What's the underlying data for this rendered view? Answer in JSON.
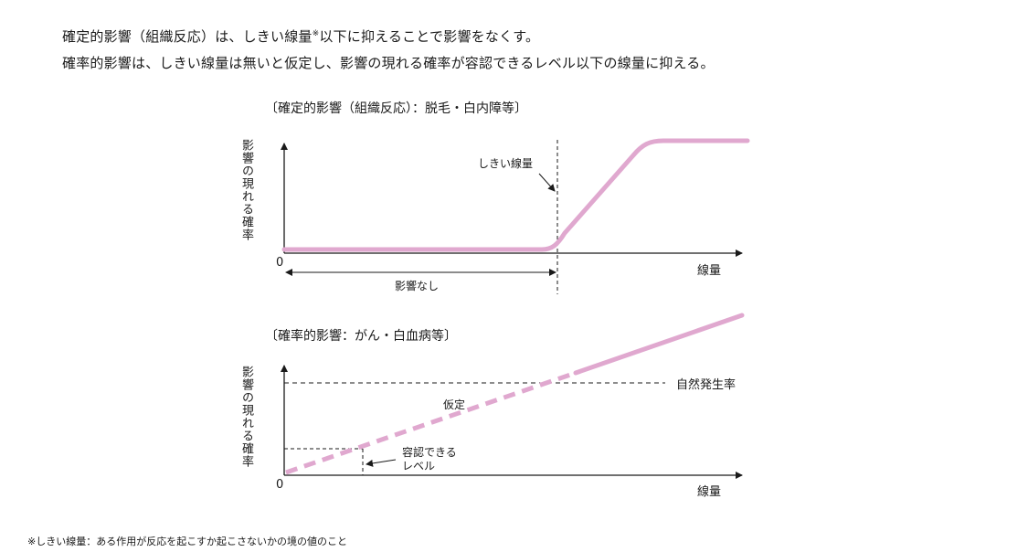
{
  "intro": {
    "line1": "確定的影響（組織反応）は、しきい線量",
    "line1_mark": "※",
    "line1_rest": "以下に抑えることで影響をなくす。",
    "line2": "確率的影響は、しきい線量は無いと仮定し、影響の現れる確率が容認できるレベル以下の線量に抑える。"
  },
  "deterministic": {
    "title": "〔確定的影響（組織反応）：脱毛・白内障等〕",
    "y_label": "影響の現れる確率",
    "x_label": "線量",
    "origin": "0",
    "threshold_label": "しきい線量",
    "no_effect_label": "影響なし",
    "curve_color": "#e0a8cf"
  },
  "stochastic": {
    "title": "〔確率的影響：がん・白血病等〕",
    "y_label": "影響の現れる確率",
    "x_label": "線量",
    "origin": "0",
    "natural_rate_label": "自然発生率",
    "assumed_label": "仮定",
    "acceptable_line1": "容認できる",
    "acceptable_line2": "レベル",
    "curve_color": "#e0a8cf"
  },
  "footnote": "※しきい線量：ある作用が反応を起こすか起こさないかの境の値のこと"
}
